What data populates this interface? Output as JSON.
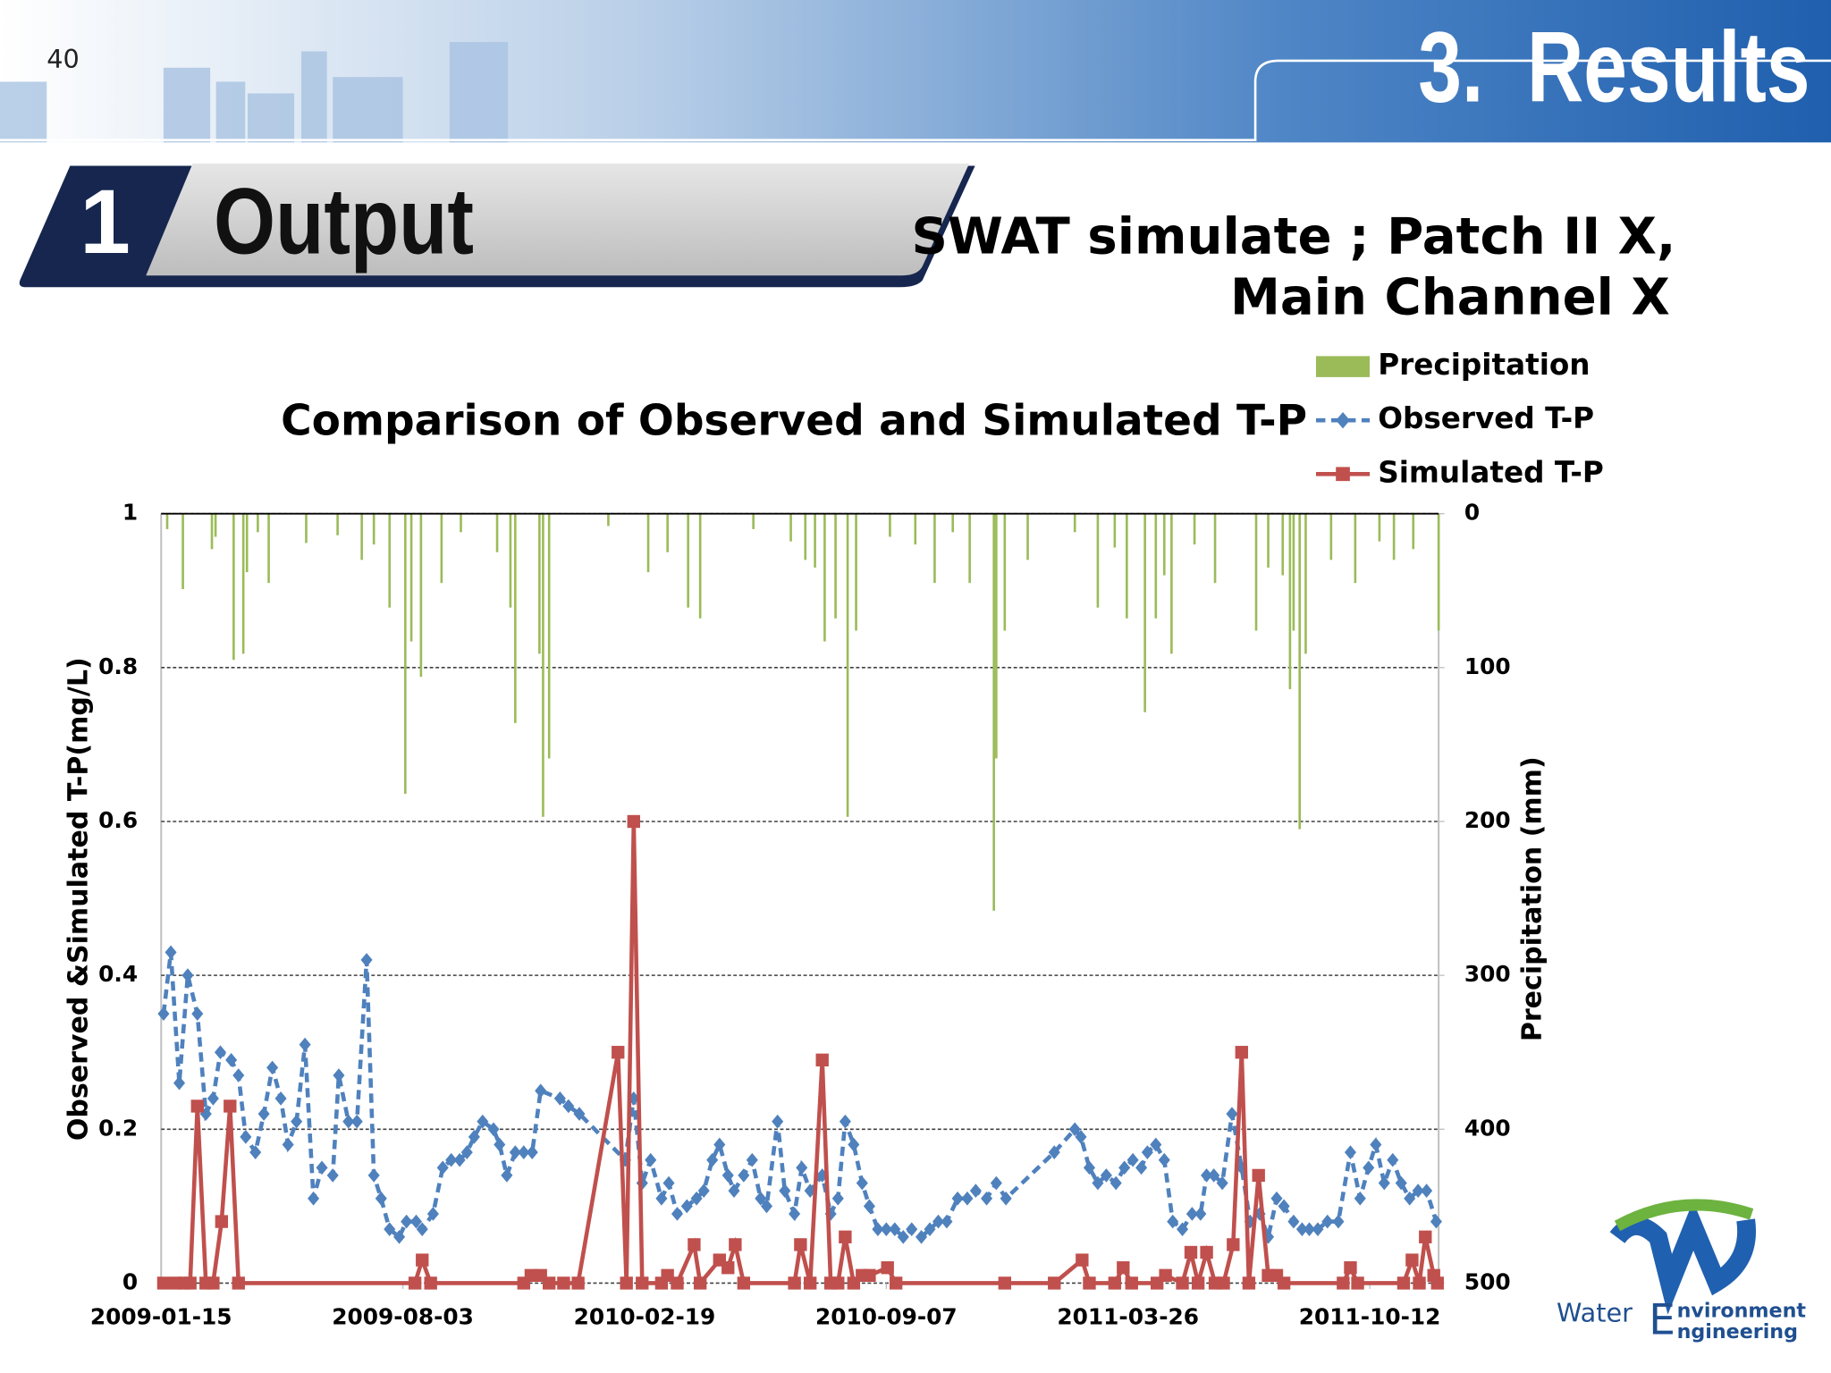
{
  "page_number": "40",
  "section": "3.  Results",
  "heading": {
    "number": "1",
    "text": "Output"
  },
  "subtitle": [
    "SWAT simulate ; Patch II X,",
    "Main Channel X"
  ],
  "logo": [
    "Water",
    "E",
    "nvironment",
    "ngineering"
  ],
  "chart_data": {
    "type": "combo",
    "title": "Comparison of Observed and Simulated T-P",
    "y_label": "Observed &Simulated T-P(mg/L)",
    "y2_label": "Precipitation (mm)",
    "xlim": [
      "2009-01-15",
      "2011-12-08"
    ],
    "xticks": [
      "2009-01-15",
      "2009-08-03",
      "2010-02-19",
      "2010-09-07",
      "2011-03-26",
      "2011-10-12"
    ],
    "ylim": [
      0,
      1
    ],
    "yticks": [
      0,
      0.2,
      0.4,
      0.6,
      0.8,
      1
    ],
    "y2lim": [
      0,
      500
    ],
    "y2ticks": [
      0,
      100,
      200,
      300,
      400,
      500
    ],
    "y2_inverted": true,
    "grid": true,
    "legend": "top-right",
    "series": [
      {
        "name": "Precipitation",
        "type": "bar",
        "axis": "y2",
        "color": "#9bbb59",
        "x": [
          "2009-01-20",
          "2009-02-02",
          "2009-02-26",
          "2009-03-01",
          "2009-03-16",
          "2009-03-24",
          "2009-03-27",
          "2009-04-05",
          "2009-04-14",
          "2009-05-15",
          "2009-06-10",
          "2009-06-30",
          "2009-07-10",
          "2009-07-23",
          "2009-08-05",
          "2009-08-10",
          "2009-08-18",
          "2009-09-04",
          "2009-09-20",
          "2009-10-20",
          "2009-10-31",
          "2009-11-04",
          "2009-11-24",
          "2009-11-27",
          "2009-12-02",
          "2010-01-20",
          "2010-02-22",
          "2010-03-10",
          "2010-03-27",
          "2010-04-06",
          "2010-05-20",
          "2010-06-20",
          "2010-07-02",
          "2010-07-10",
          "2010-07-18",
          "2010-07-27",
          "2010-08-06",
          "2010-08-13",
          "2010-09-10",
          "2010-10-01",
          "2010-10-17",
          "2010-11-01",
          "2010-11-15",
          "2010-12-05",
          "2010-12-07",
          "2010-12-14",
          "2011-01-02",
          "2011-02-10",
          "2011-03-01",
          "2011-03-15",
          "2011-03-25",
          "2011-04-09",
          "2011-04-18",
          "2011-04-25",
          "2011-05-01",
          "2011-05-20",
          "2011-06-06",
          "2011-07-10",
          "2011-07-20",
          "2011-08-01",
          "2011-08-07",
          "2011-08-10",
          "2011-08-15",
          "2011-08-20",
          "2011-09-10",
          "2011-09-30",
          "2011-10-20",
          "2011-11-01",
          "2011-11-17",
          "2011-12-08"
        ],
        "values": [
          10,
          49,
          23,
          15,
          95,
          91,
          38,
          12,
          45,
          19,
          14,
          30,
          20,
          61,
          182,
          83,
          106,
          45,
          12,
          25,
          61,
          136,
          91,
          197,
          159,
          8,
          38,
          25,
          61,
          68,
          10,
          18,
          30,
          35,
          83,
          68,
          197,
          76,
          15,
          20,
          45,
          12,
          45,
          258,
          159,
          76,
          30,
          12,
          61,
          22,
          68,
          129,
          68,
          40,
          91,
          20,
          45,
          76,
          35,
          40,
          114,
          76,
          205,
          91,
          30,
          45,
          18,
          30,
          23,
          76
        ]
      },
      {
        "name": "Observed T-P",
        "type": "line",
        "axis": "y",
        "color": "#4f81bd",
        "dash": true,
        "marker": "diamond",
        "x": [
          "2009-01-17",
          "2009-01-23",
          "2009-01-30",
          "2009-02-06",
          "2009-02-14",
          "2009-02-21",
          "2009-02-27",
          "2009-03-05",
          "2009-03-14",
          "2009-03-20",
          "2009-03-26",
          "2009-04-03",
          "2009-04-10",
          "2009-04-17",
          "2009-04-24",
          "2009-04-30",
          "2009-05-07",
          "2009-05-14",
          "2009-05-21",
          "2009-05-28",
          "2009-06-06",
          "2009-06-11",
          "2009-06-19",
          "2009-06-26",
          "2009-07-04",
          "2009-07-10",
          "2009-07-16",
          "2009-07-23",
          "2009-07-31",
          "2009-08-06",
          "2009-08-14",
          "2009-08-19",
          "2009-08-28",
          "2009-09-05",
          "2009-09-12",
          "2009-09-19",
          "2009-09-25",
          "2009-10-01",
          "2009-10-08",
          "2009-10-17",
          "2009-10-22",
          "2009-10-28",
          "2009-11-04",
          "2009-11-11",
          "2009-11-18",
          "2009-11-25",
          "2009-12-11",
          "2009-12-18",
          "2009-12-27",
          "2010-02-03",
          "2010-02-10",
          "2010-02-17",
          "2010-02-24",
          "2010-03-05",
          "2010-03-11",
          "2010-03-18",
          "2010-03-26",
          "2010-04-03",
          "2010-04-09",
          "2010-04-16",
          "2010-04-22",
          "2010-04-29",
          "2010-05-04",
          "2010-05-12",
          "2010-05-19",
          "2010-05-26",
          "2010-05-31",
          "2010-06-09",
          "2010-06-15",
          "2010-06-23",
          "2010-06-29",
          "2010-07-06",
          "2010-07-16",
          "2010-07-23",
          "2010-07-29",
          "2010-08-04",
          "2010-08-11",
          "2010-08-18",
          "2010-08-24",
          "2010-08-31",
          "2010-09-07",
          "2010-09-14",
          "2010-09-21",
          "2010-09-28",
          "2010-10-06",
          "2010-10-13",
          "2010-10-20",
          "2010-10-27",
          "2010-11-05",
          "2010-11-13",
          "2010-11-20",
          "2010-11-29",
          "2010-12-07",
          "2010-12-15",
          "2011-01-24",
          "2011-02-10",
          "2011-02-15",
          "2011-02-22",
          "2011-03-01",
          "2011-03-08",
          "2011-03-16",
          "2011-03-23",
          "2011-03-30",
          "2011-04-06",
          "2011-04-11",
          "2011-04-18",
          "2011-04-25",
          "2011-05-02",
          "2011-05-10",
          "2011-05-18",
          "2011-05-25",
          "2011-05-30",
          "2011-06-05",
          "2011-06-12",
          "2011-06-20",
          "2011-06-28",
          "2011-07-05",
          "2011-07-13",
          "2011-07-20",
          "2011-07-27",
          "2011-08-02",
          "2011-08-10",
          "2011-08-17",
          "2011-08-23",
          "2011-08-30",
          "2011-09-07",
          "2011-09-16",
          "2011-09-26",
          "2011-10-04",
          "2011-10-11",
          "2011-10-17",
          "2011-10-24",
          "2011-10-31",
          "2011-11-07",
          "2011-11-14",
          "2011-11-21",
          "2011-11-28",
          "2011-12-06"
        ],
        "values": [
          0.35,
          0.43,
          0.26,
          0.4,
          0.35,
          0.22,
          0.24,
          0.3,
          0.29,
          0.27,
          0.19,
          0.17,
          0.22,
          0.28,
          0.24,
          0.18,
          0.21,
          0.31,
          0.11,
          0.15,
          0.14,
          0.27,
          0.21,
          0.21,
          0.42,
          0.14,
          0.11,
          0.07,
          0.06,
          0.08,
          0.08,
          0.07,
          0.09,
          0.15,
          0.16,
          0.16,
          0.17,
          0.19,
          0.21,
          0.2,
          0.18,
          0.14,
          0.17,
          0.17,
          0.17,
          0.25,
          0.24,
          0.23,
          0.22,
          0.16,
          0.24,
          0.13,
          0.16,
          0.11,
          0.13,
          0.09,
          0.1,
          0.11,
          0.12,
          0.16,
          0.18,
          0.14,
          0.12,
          0.14,
          0.16,
          0.11,
          0.1,
          0.21,
          0.12,
          0.09,
          0.15,
          0.12,
          0.14,
          0.09,
          0.11,
          0.21,
          0.18,
          0.13,
          0.1,
          0.07,
          0.07,
          0.07,
          0.06,
          0.07,
          0.06,
          0.07,
          0.08,
          0.08,
          0.11,
          0.11,
          0.12,
          0.11,
          0.13,
          0.11,
          0.17,
          0.2,
          0.19,
          0.15,
          0.13,
          0.14,
          0.13,
          0.15,
          0.16,
          0.15,
          0.17,
          0.18,
          0.16,
          0.08,
          0.07,
          0.09,
          0.09,
          0.14,
          0.14,
          0.13,
          0.22,
          0.15,
          0.08,
          0.09,
          0.06,
          0.11,
          0.1,
          0.08,
          0.07,
          0.07,
          0.07,
          0.08,
          0.08,
          0.17,
          0.11,
          0.15,
          0.18,
          0.13,
          0.16,
          0.13,
          0.11,
          0.12,
          0.12,
          0.08
        ]
      },
      {
        "name": "Simulated T-P",
        "type": "line",
        "axis": "y",
        "color": "#c0504d",
        "dash": false,
        "marker": "square",
        "x": [
          "2009-01-17",
          "2009-01-27",
          "2009-02-03",
          "2009-02-08",
          "2009-02-14",
          "2009-02-21",
          "2009-02-27",
          "2009-03-06",
          "2009-03-13",
          "2009-03-20",
          "2009-08-13",
          "2009-08-19",
          "2009-08-26",
          "2009-11-11",
          "2009-11-17",
          "2009-11-25",
          "2009-12-02",
          "2009-12-14",
          "2009-12-26",
          "2010-01-28",
          "2010-02-04",
          "2010-02-10",
          "2010-02-17",
          "2010-03-05",
          "2010-03-10",
          "2010-03-18",
          "2010-04-01",
          "2010-04-06",
          "2010-04-22",
          "2010-04-29",
          "2010-05-05",
          "2010-05-12",
          "2010-06-23",
          "2010-06-28",
          "2010-07-06",
          "2010-07-16",
          "2010-07-23",
          "2010-07-29",
          "2010-08-04",
          "2010-08-11",
          "2010-08-18",
          "2010-08-24",
          "2010-09-08",
          "2010-09-15",
          "2010-12-14",
          "2011-01-24",
          "2011-02-16",
          "2011-02-22",
          "2011-03-15",
          "2011-03-22",
          "2011-03-29",
          "2011-04-19",
          "2011-04-26",
          "2011-05-10",
          "2011-05-17",
          "2011-05-23",
          "2011-05-30",
          "2011-06-06",
          "2011-06-13",
          "2011-06-21",
          "2011-06-28",
          "2011-07-04",
          "2011-07-12",
          "2011-07-20",
          "2011-07-27",
          "2011-08-02",
          "2011-09-20",
          "2011-09-26",
          "2011-10-02",
          "2011-11-09",
          "2011-11-16",
          "2011-11-22",
          "2011-11-27",
          "2011-12-04",
          "2011-12-07"
        ],
        "values": [
          0,
          0,
          0,
          0,
          0.23,
          0,
          0,
          0.08,
          0.23,
          0,
          0,
          0.03,
          0,
          0,
          0.01,
          0.01,
          0,
          0,
          0,
          0.3,
          0,
          0.6,
          0,
          0,
          0.01,
          0,
          0.05,
          0,
          0.03,
          0.02,
          0.05,
          0,
          0,
          0.05,
          0,
          0.29,
          0,
          0,
          0.06,
          0,
          0.01,
          0.01,
          0.02,
          0,
          0,
          0,
          0.03,
          0,
          0,
          0.02,
          0,
          0,
          0.01,
          0,
          0.04,
          0,
          0.04,
          0,
          0,
          0.05,
          0.3,
          0,
          0.14,
          0.01,
          0.01,
          0,
          0,
          0.02,
          0,
          0,
          0.03,
          0,
          0.06,
          0.01,
          0
        ]
      }
    ]
  }
}
